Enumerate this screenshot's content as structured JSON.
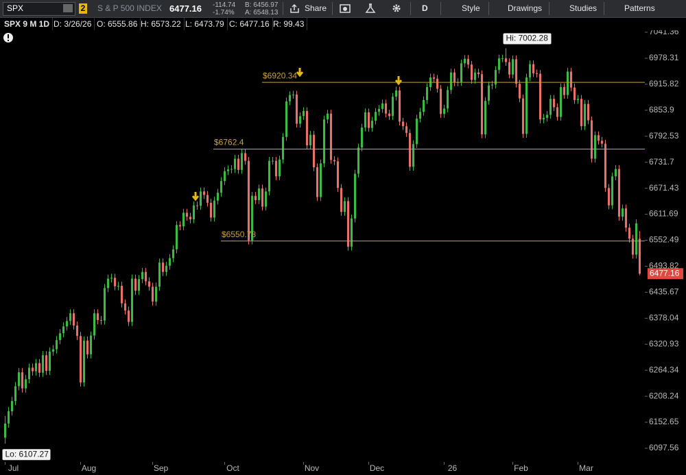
{
  "toolbar": {
    "symbol": "SPX",
    "link": "2",
    "description": "S & P 500 INDEX",
    "last": "6477.16",
    "change": "-114.74",
    "change_pct": "-1.74%",
    "bid": "B: 6456.97",
    "ask": "A: 6548.13",
    "share": "Share",
    "period": "D",
    "style": "Style",
    "drawings": "Drawings",
    "studies": "Studies",
    "patterns": "Patterns"
  },
  "info_bar": {
    "chart": "SPX 9 M 1D",
    "date": "D: 3/26/26",
    "open": "O: 6555.86",
    "high": "H: 6573.22",
    "low": "L: 6473.79",
    "close": "C: 6477.16",
    "range": "R: 99.43"
  },
  "chart_data": {
    "type": "candlestick",
    "log": true,
    "grid": false,
    "colors": {
      "up": "#3dba45",
      "down": "#e8716c",
      "level": "#c9a43a"
    },
    "xlim": [
      -1.5,
      186.5
    ],
    "xticks": [
      {
        "value": 0,
        "label": "Jul"
      },
      {
        "value": 22,
        "label": "Aug"
      },
      {
        "value": 43,
        "label": "Sep"
      },
      {
        "value": 64,
        "label": "Oct"
      },
      {
        "value": 87,
        "label": "Nov"
      },
      {
        "value": 106,
        "label": "Dec"
      },
      {
        "value": 128,
        "label": "26"
      },
      {
        "value": 148,
        "label": "Feb"
      },
      {
        "value": 167,
        "label": "Mar"
      }
    ],
    "ylim": [
      6071.6,
      7078.2
    ],
    "yticks": [
      7041.36,
      6978.31,
      6915.82,
      6853.9,
      6792.53,
      6731.7,
      6671.43,
      6611.69,
      6552.49,
      6493.82,
      6435.67,
      6378.04,
      6320.93,
      6264.34,
      6208.24,
      6152.65,
      6097.56
    ],
    "open": [
      6120,
      6150,
      6176,
      6198,
      6230,
      6260,
      6225,
      6245,
      6270,
      6262,
      6280,
      6259,
      6297,
      6263,
      6305,
      6310,
      6330,
      6345,
      6360,
      6372,
      6389,
      6362,
      6339,
      6238,
      6329,
      6299,
      6340,
      6389,
      6374,
      6373,
      6445,
      6466,
      6468,
      6449,
      6450,
      6411,
      6395,
      6370,
      6466,
      6439,
      6465,
      6481,
      6460,
      6448,
      6415,
      6448,
      6502,
      6481,
      6495,
      6512,
      6532,
      6587,
      6584,
      6615,
      6606,
      6600,
      6632,
      6631,
      6664,
      6656,
      6638,
      6604,
      6643,
      6661,
      6688,
      6711,
      6715,
      6716,
      6740,
      6714,
      6753,
      6735,
      6552,
      6654,
      6644,
      6671,
      6629,
      6664,
      6735,
      6735,
      6699,
      6738,
      6791,
      6875,
      6890,
      6891,
      6822,
      6840,
      6852,
      6771,
      6796,
      6720,
      6651,
      6729,
      6832,
      6846,
      6737,
      6734,
      6672,
      6617,
      6642,
      6538,
      6602,
      6705,
      6766,
      6813,
      6849,
      6812,
      6829,
      6850,
      6857,
      6870,
      6846,
      6840,
      6886,
      6901,
      6827,
      6816,
      6800,
      6721,
      6774,
      6834,
      6850,
      6878,
      6909,
      6932,
      6929,
      6905,
      6845,
      6858,
      6902,
      6944,
      6920,
      6921,
      6966,
      6977,
      6963,
      6926,
      6944,
      6940,
      6797,
      6876,
      6913,
      6915,
      6950,
      6978,
      6978,
      6969,
      6939,
      6976,
      6917,
      6882,
      6798,
      6932,
      6964,
      6942,
      6941,
      6832,
      6836,
      6843,
      6881,
      6861,
      6838,
      6909,
      6890,
      6946,
      6908,
      6878,
      6881,
      6816,
      6869,
      6830,
      6740,
      6795,
      6782,
      6775,
      6672,
      6632,
      6699,
      6716,
      6606,
      6625,
      6581,
      6556,
      6520,
      6555.86
    ],
    "high": [
      6166,
      6185,
      6207,
      6239,
      6269,
      6269,
      6254,
      6279,
      6279,
      6289,
      6289,
      6306,
      6306,
      6314,
      6319,
      6339,
      6354,
      6369,
      6381,
      6398,
      6398,
      6371,
      6348,
      6338,
      6338,
      6349,
      6398,
      6398,
      6383,
      6454,
      6475,
      6477,
      6477,
      6459,
      6459,
      6420,
      6404,
      6475,
      6475,
      6474,
      6490,
      6490,
      6469,
      6457,
      6457,
      6511,
      6511,
      6504,
      6521,
      6541,
      6596,
      6596,
      6624,
      6624,
      6615,
      6641,
      6641,
      6673,
      6673,
      6665,
      6647,
      6652,
      6670,
      6697,
      6720,
      6724,
      6725,
      6749,
      6749,
      6762,
      6762,
      6744,
      6663,
      6663,
      6680,
      6680,
      6673,
      6744,
      6744,
      6744,
      6747,
      6800,
      6884,
      6899,
      6900,
      6900,
      6849,
      6861,
      6861,
      6805,
      6805,
      6729,
      6738,
      6841,
      6855,
      6855,
      6746,
      6743,
      6681,
      6651,
      6651,
      6611,
      6714,
      6775,
      6822,
      6858,
      6858,
      6838,
      6859,
      6866,
      6879,
      6879,
      6855,
      6895,
      6910,
      6910,
      6836,
      6825,
      6809,
      6783,
      6843,
      6859,
      6887,
      6918,
      6941,
      6941,
      6938,
      6914,
      6867,
      6911,
      6953,
      6953,
      6930,
      6975,
      6986,
      6986,
      6972,
      6953,
      6953,
      6949,
      6885,
      6922,
      6924,
      6959,
      6987,
      6987,
      7002.28,
      6978,
      6985,
      6985,
      6926,
      6891,
      6941,
      6973,
      6973,
      6951,
      6950,
      6845,
      6852,
      6890,
      6890,
      6870,
      6918,
      6918,
      6955,
      6955,
      6917,
      6890,
      6890,
      6878,
      6878,
      6839,
      6804,
      6804,
      6791,
      6784,
      6681,
      6708,
      6725,
      6725,
      6634,
      6634,
      6590,
      6565,
      6600,
      6573.22
    ],
    "low": [
      6107.27,
      6141,
      6167,
      6189,
      6221,
      6216,
      6216,
      6236,
      6253,
      6253,
      6250,
      6250,
      6254,
      6254,
      6296,
      6301,
      6321,
      6336,
      6351,
      6363,
      6353,
      6330,
      6229,
      6229,
      6290,
      6290,
      6331,
      6365,
      6364,
      6364,
      6436,
      6457,
      6440,
      6440,
      6402,
      6386,
      6361,
      6361,
      6430,
      6430,
      6456,
      6451,
      6439,
      6406,
      6406,
      6439,
      6472,
      6472,
      6486,
      6503,
      6523,
      6575,
      6575,
      6597,
      6591,
      6591,
      6622,
      6622,
      6647,
      6629,
      6595,
      6595,
      6634,
      6652,
      6679,
      6702,
      6706,
      6707,
      6705,
      6705,
      6726,
      6543,
      6543,
      6635,
      6635,
      6620,
      6620,
      6655,
      6726,
      6690,
      6690,
      6729,
      6782,
      6866,
      6881,
      6813,
      6813,
      6831,
      6762,
      6762,
      6711,
      6642,
      6642,
      6720,
      6823,
      6728,
      6725,
      6663,
      6608,
      6608,
      6529,
      6529,
      6593,
      6696,
      6757,
      6804,
      6803,
      6803,
      6820,
      6841,
      6848,
      6837,
      6831,
      6831,
      6877,
      6818,
      6807,
      6791,
      6712,
      6712,
      6765,
      6825,
      6841,
      6869,
      6900,
      6920,
      6896,
      6836,
      6836,
      6849,
      6893,
      6911,
      6911,
      6912,
      6957,
      6954,
      6917,
      6917,
      6931,
      6788,
      6788,
      6867,
      6904,
      6906,
      6941,
      6969,
      6960,
      6930,
      6930,
      6908,
      6873,
      6789,
      6789,
      6923,
      6933,
      6932,
      6823,
      6823,
      6827,
      6834,
      6852,
      6829,
      6829,
      6881,
      6881,
      6899,
      6869,
      6869,
      6807,
      6807,
      6821,
      6731,
      6731,
      6773,
      6766,
      6663,
      6623,
      6623,
      6690,
      6597,
      6597,
      6572,
      6547,
      6511,
      6511,
      6473.79
    ],
    "close": [
      6150,
      6176,
      6198,
      6230,
      6260,
      6225,
      6245,
      6270,
      6262,
      6280,
      6259,
      6297,
      6263,
      6305,
      6310,
      6330,
      6345,
      6360,
      6372,
      6389,
      6362,
      6339,
      6238,
      6329,
      6299,
      6340,
      6389,
      6374,
      6373,
      6445,
      6466,
      6468,
      6449,
      6450,
      6411,
      6395,
      6370,
      6466,
      6439,
      6465,
      6481,
      6460,
      6448,
      6415,
      6448,
      6502,
      6481,
      6495,
      6512,
      6532,
      6587,
      6584,
      6615,
      6606,
      6600,
      6632,
      6631,
      6664,
      6656,
      6638,
      6604,
      6643,
      6661,
      6688,
      6711,
      6715,
      6716,
      6740,
      6714,
      6753,
      6735,
      6552,
      6654,
      6644,
      6671,
      6629,
      6664,
      6735,
      6735,
      6699,
      6738,
      6791,
      6875,
      6890,
      6891,
      6822,
      6840,
      6852,
      6771,
      6796,
      6720,
      6651,
      6729,
      6832,
      6846,
      6737,
      6734,
      6672,
      6617,
      6642,
      6538,
      6602,
      6705,
      6766,
      6813,
      6849,
      6812,
      6829,
      6850,
      6857,
      6870,
      6846,
      6840,
      6886,
      6901,
      6827,
      6816,
      6800,
      6721,
      6774,
      6834,
      6850,
      6878,
      6909,
      6932,
      6929,
      6905,
      6845,
      6858,
      6902,
      6944,
      6920,
      6921,
      6966,
      6977,
      6963,
      6926,
      6944,
      6940,
      6797,
      6876,
      6913,
      6915,
      6950,
      6978,
      6978,
      6969,
      6939,
      6976,
      6917,
      6882,
      6798,
      6932,
      6964,
      6942,
      6941,
      6832,
      6836,
      6843,
      6881,
      6861,
      6838,
      6909,
      6890,
      6946,
      6908,
      6878,
      6881,
      6816,
      6869,
      6830,
      6740,
      6795,
      6782,
      6775,
      6672,
      6632,
      6699,
      6716,
      6606,
      6625,
      6581,
      6556,
      6520,
      6591,
      6477.16
    ],
    "levels": [
      {
        "value": 6920.34,
        "label": "$6920.34"
      },
      {
        "value": 6762.4,
        "label": "$6762.4"
      },
      {
        "value": 6550.78,
        "label": "$6550.78"
      }
    ],
    "hi_label": "Hi: 7002.28",
    "lo_label": "Lo: 6107.27",
    "last_label": "6477.16"
  }
}
